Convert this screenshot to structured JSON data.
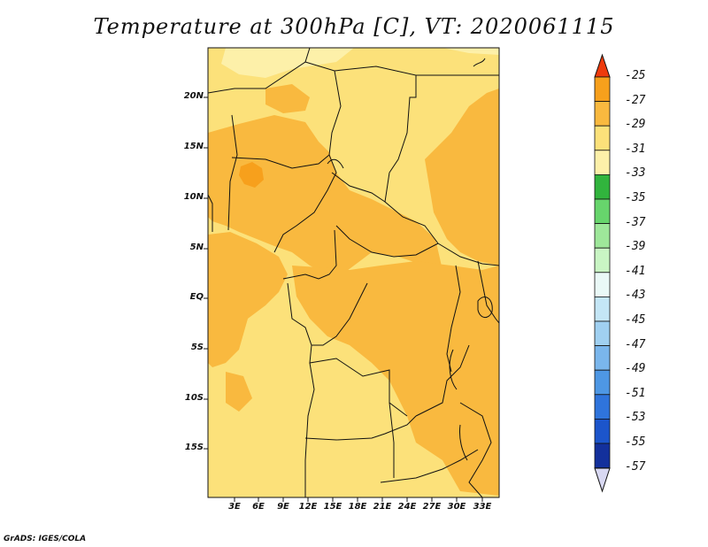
{
  "title": "Temperature at 300hPa [C], VT: 2020061115",
  "credit": "GrADS: IGES/COLA",
  "map": {
    "variable": "Temperature",
    "level": "300hPa",
    "units": "C",
    "valid_time": "2020061115",
    "lat_labels": [
      "20N",
      "15N",
      "10N",
      "5N",
      "EQ",
      "5S",
      "10S",
      "15S"
    ],
    "lon_labels": [
      "3E",
      "6E",
      "9E",
      "12E",
      "15E",
      "18E",
      "21E",
      "24E",
      "27E",
      "30E",
      "33E"
    ],
    "region_colors": {
      "base": "#fce17a",
      "warm": "#f9b93f",
      "warmest": "#f7a01c",
      "cool": "#fdf0a9"
    }
  },
  "colorbar": {
    "levels": [
      "-25",
      "-27",
      "-29",
      "-31",
      "-33",
      "-35",
      "-37",
      "-39",
      "-41",
      "-43",
      "-45",
      "-47",
      "-49",
      "-51",
      "-53",
      "-55",
      "-57"
    ],
    "colors": [
      "#f45a0b",
      "#f7a01c",
      "#f9b93f",
      "#fce17a",
      "#fdf0a9",
      "#31b43d",
      "#67d56c",
      "#9ee79a",
      "#c9f5c4",
      "#eaf9f7",
      "#c4e6f6",
      "#a0d0f1",
      "#7ab6ec",
      "#4e97e4",
      "#2f74dc",
      "#1c55cb",
      "#13309c"
    ],
    "top_arrow_color": "#ee3a0c",
    "bottom_arrow_color": "#d8d8f2"
  }
}
